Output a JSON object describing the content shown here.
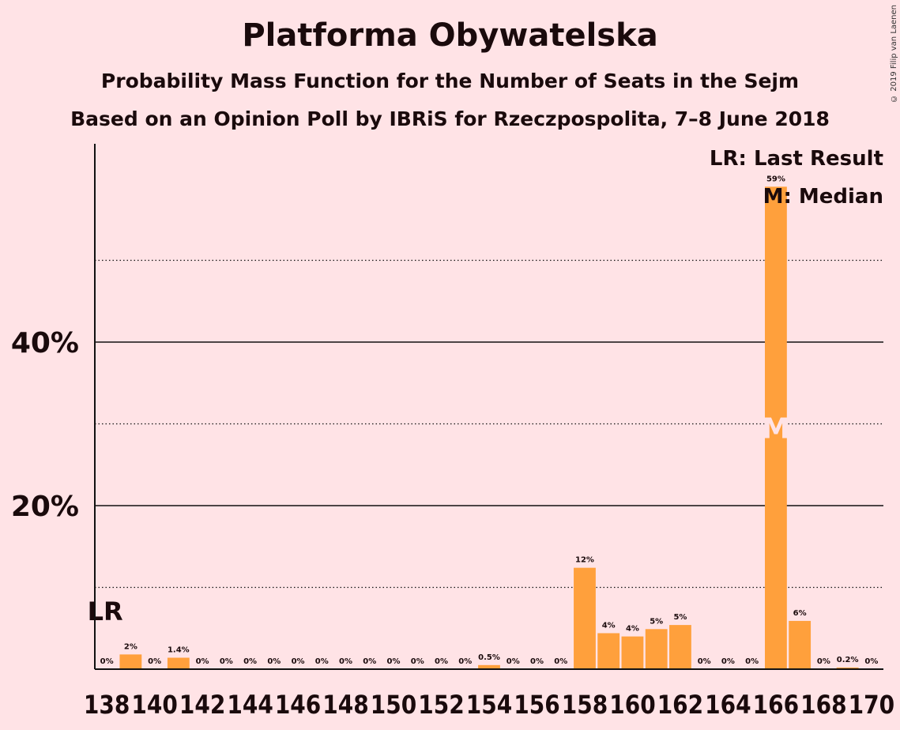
{
  "title": "Platforma Obywatelska",
  "subtitle": "Probability Mass Function for the Number of Seats in the Sejm",
  "subtitle2": "Based on an Opinion Poll by IBRiS for Rzeczpospolita, 7–8 June 2018",
  "copyright": "© 2019 Filip van Laenen",
  "legend": {
    "lr": "LR: Last Result",
    "median": "M: Median"
  },
  "lr_marker": "LR",
  "median_marker": "M",
  "colors": {
    "background": "#FFE3E6",
    "bar": "#FFA03C",
    "median_text": "#FFE3E6"
  },
  "chart_data": {
    "type": "bar",
    "x": [
      138,
      139,
      140,
      141,
      142,
      143,
      144,
      145,
      146,
      147,
      148,
      149,
      150,
      151,
      152,
      153,
      154,
      155,
      156,
      157,
      158,
      159,
      160,
      161,
      162,
      163,
      164,
      165,
      166,
      167,
      168,
      169,
      170
    ],
    "values": [
      0,
      1.8,
      0,
      1.4,
      0,
      0,
      0,
      0,
      0,
      0,
      0,
      0,
      0,
      0,
      0,
      0,
      0.5,
      0,
      0,
      0,
      12.4,
      4.4,
      4.0,
      4.9,
      5.4,
      0,
      0,
      0,
      59,
      5.9,
      0,
      0.2,
      0
    ],
    "labels": [
      "0%",
      "2%",
      "0%",
      "1.4%",
      "0%",
      "0%",
      "0%",
      "0%",
      "0%",
      "0%",
      "0%",
      "0%",
      "0%",
      "0%",
      "0%",
      "0%",
      "0.5%",
      "0%",
      "0%",
      "0%",
      "12%",
      "4%",
      "4%",
      "5%",
      "5%",
      "0%",
      "0%",
      "0%",
      "59%",
      "6%",
      "0%",
      "0.2%",
      "0%"
    ],
    "tick_labels": [
      "138",
      "140",
      "142",
      "144",
      "146",
      "148",
      "150",
      "152",
      "154",
      "156",
      "158",
      "160",
      "162",
      "164",
      "166",
      "168",
      "170"
    ],
    "ytick_labels": [
      "20%",
      "40%"
    ],
    "yticks": [
      20,
      40
    ],
    "ygrid_dotted": [
      10,
      30,
      50
    ],
    "ylim": [
      0,
      64
    ],
    "last_result": 138,
    "median": 166
  }
}
